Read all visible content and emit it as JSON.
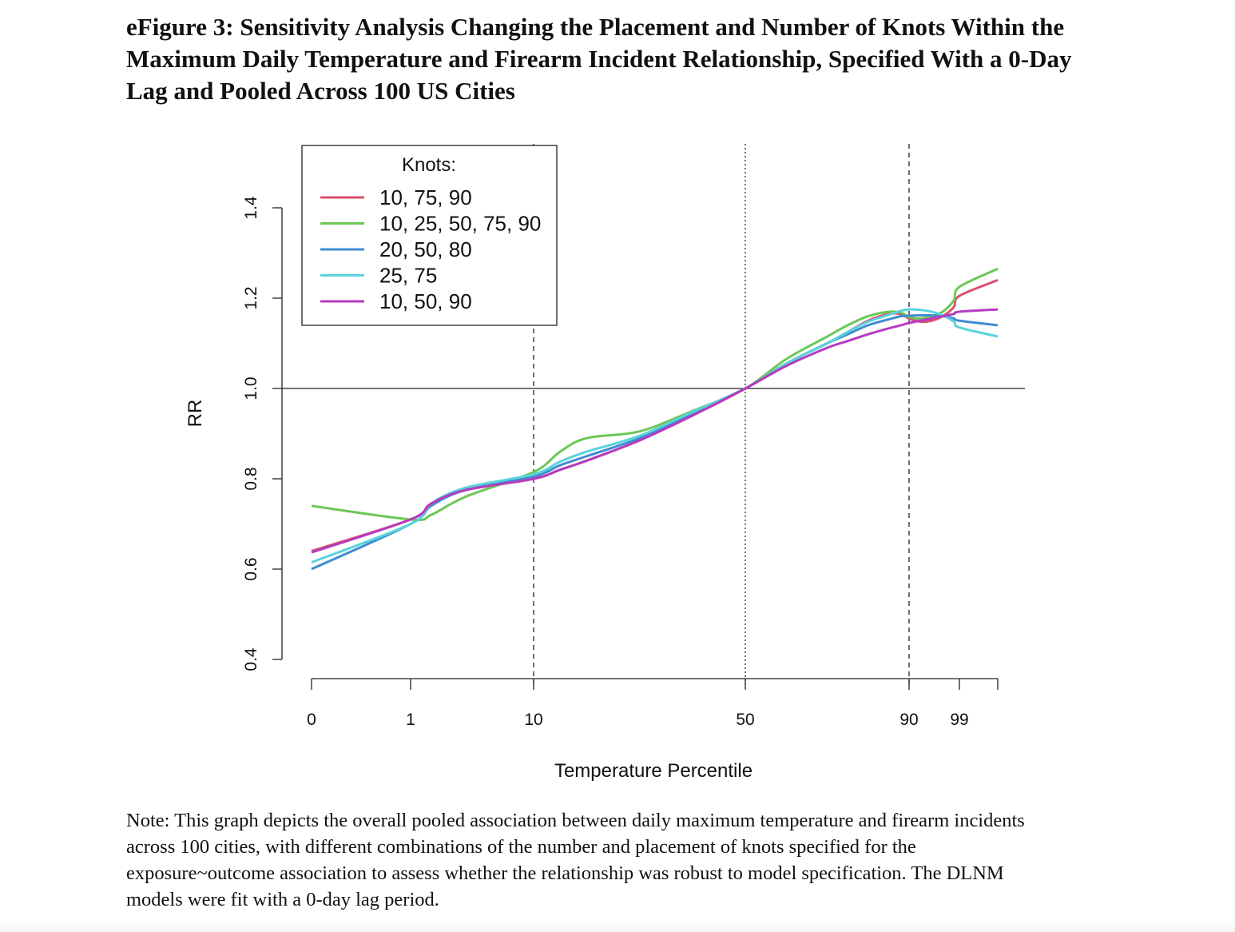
{
  "title_lines": [
    "eFigure 3: Sensitivity Analysis Changing the Placement and Number of Knots Within the",
    "Maximum Daily Temperature and Firearm Incident Relationship, Specified With a 0-Day",
    "Lag and Pooled Across 100 US Cities"
  ],
  "note_lines": [
    "Note: This graph depicts the overall pooled association between daily maximum temperature and firearm incidents",
    "across 100 cities, with different combinations of the number and placement of knots specified for the",
    "exposure~outcome association to assess whether the relationship was robust to model specification. The DLNM",
    "models were fit with a 0-day lag period."
  ],
  "chart_data": {
    "type": "line",
    "xlabel": "Temperature Percentile",
    "ylabel": "RR",
    "ylim": [
      0.4,
      1.4
    ],
    "y_ticks": [
      0.4,
      0.6,
      0.8,
      1.0,
      1.2,
      1.4
    ],
    "y_tick_labels": [
      "0.4",
      "0.6",
      "0.8",
      "1.0",
      "1.2",
      "1.4"
    ],
    "x_scale": "percentile (nonlinear)",
    "x_tick_labels": [
      "0",
      "1",
      "10",
      "50",
      "90",
      "99"
    ],
    "x_tick_percentiles": [
      0,
      1,
      10,
      50,
      90,
      99,
      100
    ],
    "reference_line_y": 1.0,
    "vertical_lines": [
      {
        "percentile": 10,
        "style": "dashed"
      },
      {
        "percentile": 50,
        "style": "dotted"
      },
      {
        "percentile": 90,
        "style": "dashed"
      }
    ],
    "legend": {
      "title": "Knots:",
      "position": "top-left"
    },
    "x": [
      0,
      1,
      2.5,
      5,
      10,
      15,
      20,
      30,
      40,
      50,
      60,
      70,
      75,
      80,
      85,
      88,
      90,
      92,
      94,
      96,
      98,
      99,
      100
    ],
    "series": [
      {
        "name": "10, 75, 90",
        "color": "#d9506c",
        "values": [
          0.64,
          0.71,
          0.745,
          0.775,
          0.8,
          0.82,
          0.84,
          0.885,
          0.94,
          1.0,
          1.055,
          1.1,
          1.125,
          1.15,
          1.165,
          1.165,
          1.155,
          1.148,
          1.15,
          1.16,
          1.18,
          1.205,
          1.24
        ]
      },
      {
        "name": "10, 25, 50, 75, 90",
        "color": "#6cc757",
        "values": [
          0.74,
          0.71,
          0.72,
          0.76,
          0.815,
          0.86,
          0.89,
          0.905,
          0.95,
          1.0,
          1.065,
          1.115,
          1.14,
          1.16,
          1.17,
          1.168,
          1.158,
          1.155,
          1.16,
          1.17,
          1.195,
          1.225,
          1.265
        ]
      },
      {
        "name": "20, 50, 80",
        "color": "#3f8dd1",
        "values": [
          0.6,
          0.7,
          0.74,
          0.775,
          0.805,
          0.83,
          0.85,
          0.89,
          0.945,
          1.0,
          1.055,
          1.1,
          1.12,
          1.14,
          1.153,
          1.16,
          1.161,
          1.162,
          1.162,
          1.16,
          1.155,
          1.15,
          1.14
        ]
      },
      {
        "name": "25, 75",
        "color": "#5ad3dc",
        "values": [
          0.615,
          0.7,
          0.745,
          0.78,
          0.81,
          0.838,
          0.86,
          0.895,
          0.948,
          1.0,
          1.055,
          1.1,
          1.125,
          1.148,
          1.163,
          1.172,
          1.175,
          1.174,
          1.17,
          1.162,
          1.148,
          1.135,
          1.115
        ]
      },
      {
        "name": "10, 50, 90",
        "color": "#b63bbf",
        "values": [
          0.637,
          0.71,
          0.745,
          0.775,
          0.8,
          0.82,
          0.84,
          0.885,
          0.94,
          1.0,
          1.05,
          1.09,
          1.105,
          1.12,
          1.133,
          1.14,
          1.145,
          1.15,
          1.155,
          1.16,
          1.165,
          1.17,
          1.175
        ]
      }
    ]
  }
}
